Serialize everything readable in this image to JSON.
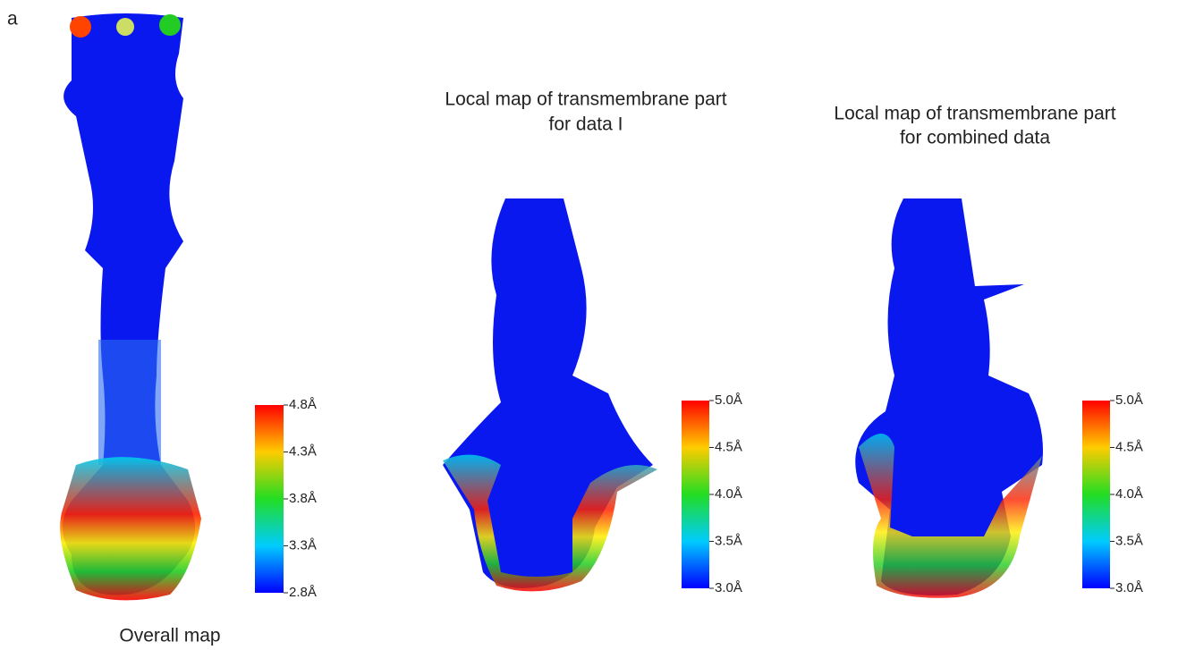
{
  "panel_label": "a",
  "panels": [
    {
      "caption": "Overall map",
      "scale": [
        "4.8Å",
        "4.3Å",
        "3.8Å",
        "3.3Å",
        "2.8Å"
      ]
    },
    {
      "title_lines": [
        "Local map of transmembrane part",
        "for data I"
      ],
      "scale": [
        "5.0Å",
        "4.5Å",
        "4.0Å",
        "3.5Å",
        "3.0Å"
      ]
    },
    {
      "title_lines": [
        "Local map of transmembrane part",
        "for combined data"
      ],
      "scale": [
        "5.0Å",
        "4.5Å",
        "4.0Å",
        "3.5Å",
        "3.0Å"
      ]
    }
  ]
}
